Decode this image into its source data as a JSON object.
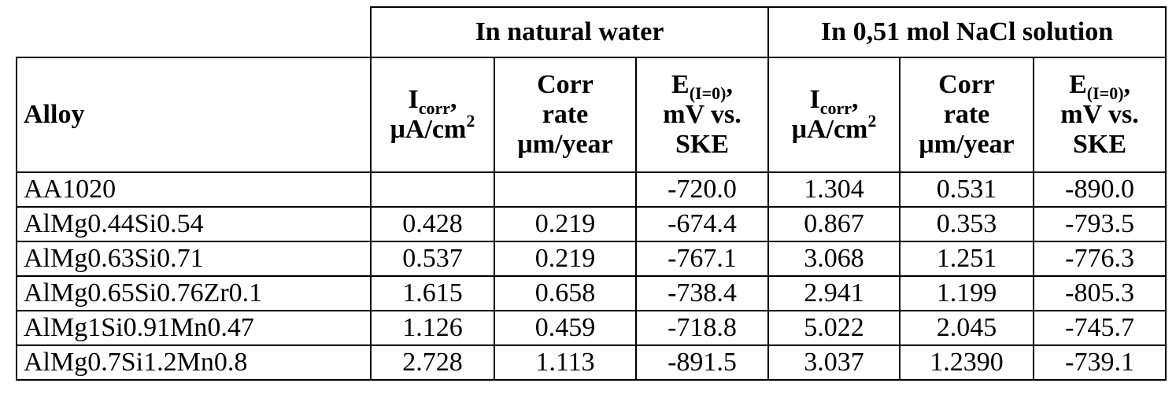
{
  "table": {
    "groups": [
      "In natural water",
      "In 0,51 mol NaCl solution"
    ],
    "alloy_header": "Alloy",
    "columns": [
      {
        "main": "I",
        "sub": "corr",
        "mid": ",",
        "line2": "μA/cm",
        "sup": "2"
      },
      {
        "line1": "Corr",
        "line2": "rate",
        "line3": "μm/year"
      },
      {
        "main": "E",
        "sub": "(I=0)",
        "mid": ",",
        "line2": "mV vs.",
        "line3": "SKE"
      },
      {
        "main": "I",
        "sub": "corr",
        "mid": ",",
        "line2": "μA/cm",
        "sup": "2"
      },
      {
        "line1": "Corr",
        "line2": "rate",
        "line3": "μm/year"
      },
      {
        "main": "E",
        "sub": "(I=0)",
        "mid": ",",
        "line2": "mV vs.",
        "line3": "SKE"
      }
    ],
    "rows": [
      {
        "alloy": "AA1020",
        "values": [
          "",
          "",
          "-720.0",
          "1.304",
          "0.531",
          "-890.0"
        ]
      },
      {
        "alloy": "AlMg0.44Si0.54",
        "values": [
          "0.428",
          "0.219",
          "-674.4",
          "0.867",
          "0.353",
          "-793.5"
        ]
      },
      {
        "alloy": "AlMg0.63Si0.71",
        "values": [
          "0.537",
          "0.219",
          "-767.1",
          "3.068",
          "1.251",
          "-776.3"
        ]
      },
      {
        "alloy": "AlMg0.65Si0.76Zr0.1",
        "values": [
          "1.615",
          "0.658",
          "-738.4",
          "2.941",
          "1.199",
          "-805.3"
        ]
      },
      {
        "alloy": "AlMg1Si0.91Mn0.47",
        "values": [
          "1.126",
          "0.459",
          "-718.8",
          "5.022",
          "2.045",
          "-745.7"
        ]
      },
      {
        "alloy": "AlMg0.7Si1.2Mn0.8",
        "values": [
          "2.728",
          "1.113",
          "-891.5",
          "3.037",
          "1.2390",
          "-739.1"
        ]
      }
    ]
  }
}
